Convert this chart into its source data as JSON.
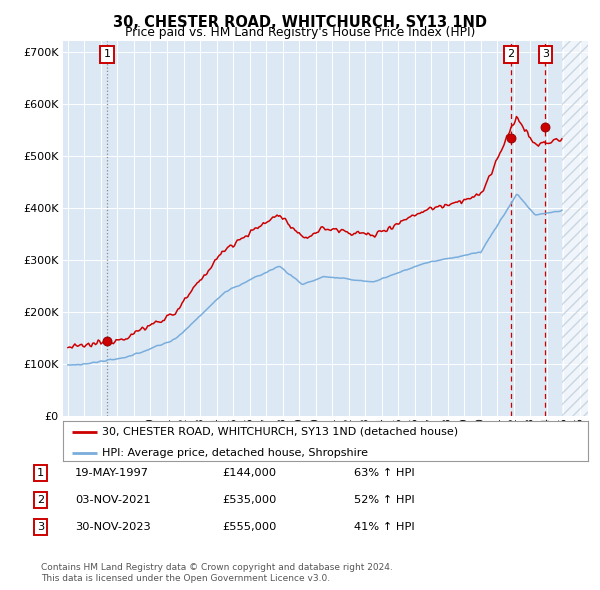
{
  "title1": "30, CHESTER ROAD, WHITCHURCH, SY13 1ND",
  "title2": "Price paid vs. HM Land Registry's House Price Index (HPI)",
  "legend_line1": "30, CHESTER ROAD, WHITCHURCH, SY13 1ND (detached house)",
  "legend_line2": "HPI: Average price, detached house, Shropshire",
  "transactions": [
    {
      "num": 1,
      "date": "19-MAY-1997",
      "price": 144000,
      "pct": "63% ↑ HPI",
      "year": 1997.37,
      "line_style": "dotted_gray"
    },
    {
      "num": 2,
      "date": "03-NOV-2021",
      "price": 535000,
      "pct": "52% ↑ HPI",
      "year": 2021.83,
      "line_style": "dashed_red"
    },
    {
      "num": 3,
      "date": "30-NOV-2023",
      "price": 555000,
      "pct": "41% ↑ HPI",
      "year": 2023.91,
      "line_style": "dashed_red"
    }
  ],
  "footnote1": "Contains HM Land Registry data © Crown copyright and database right 2024.",
  "footnote2": "This data is licensed under the Open Government Licence v3.0.",
  "red_color": "#cc0000",
  "blue_color": "#7aaddc",
  "bg_color": "#dce9f5",
  "grid_color": "#ffffff",
  "future_start_year": 2024.92,
  "yticks": [
    0,
    100000,
    200000,
    300000,
    400000,
    500000,
    600000,
    700000
  ],
  "xlim_left": 1994.7,
  "xlim_right": 2026.5,
  "ylim_top": 720000
}
